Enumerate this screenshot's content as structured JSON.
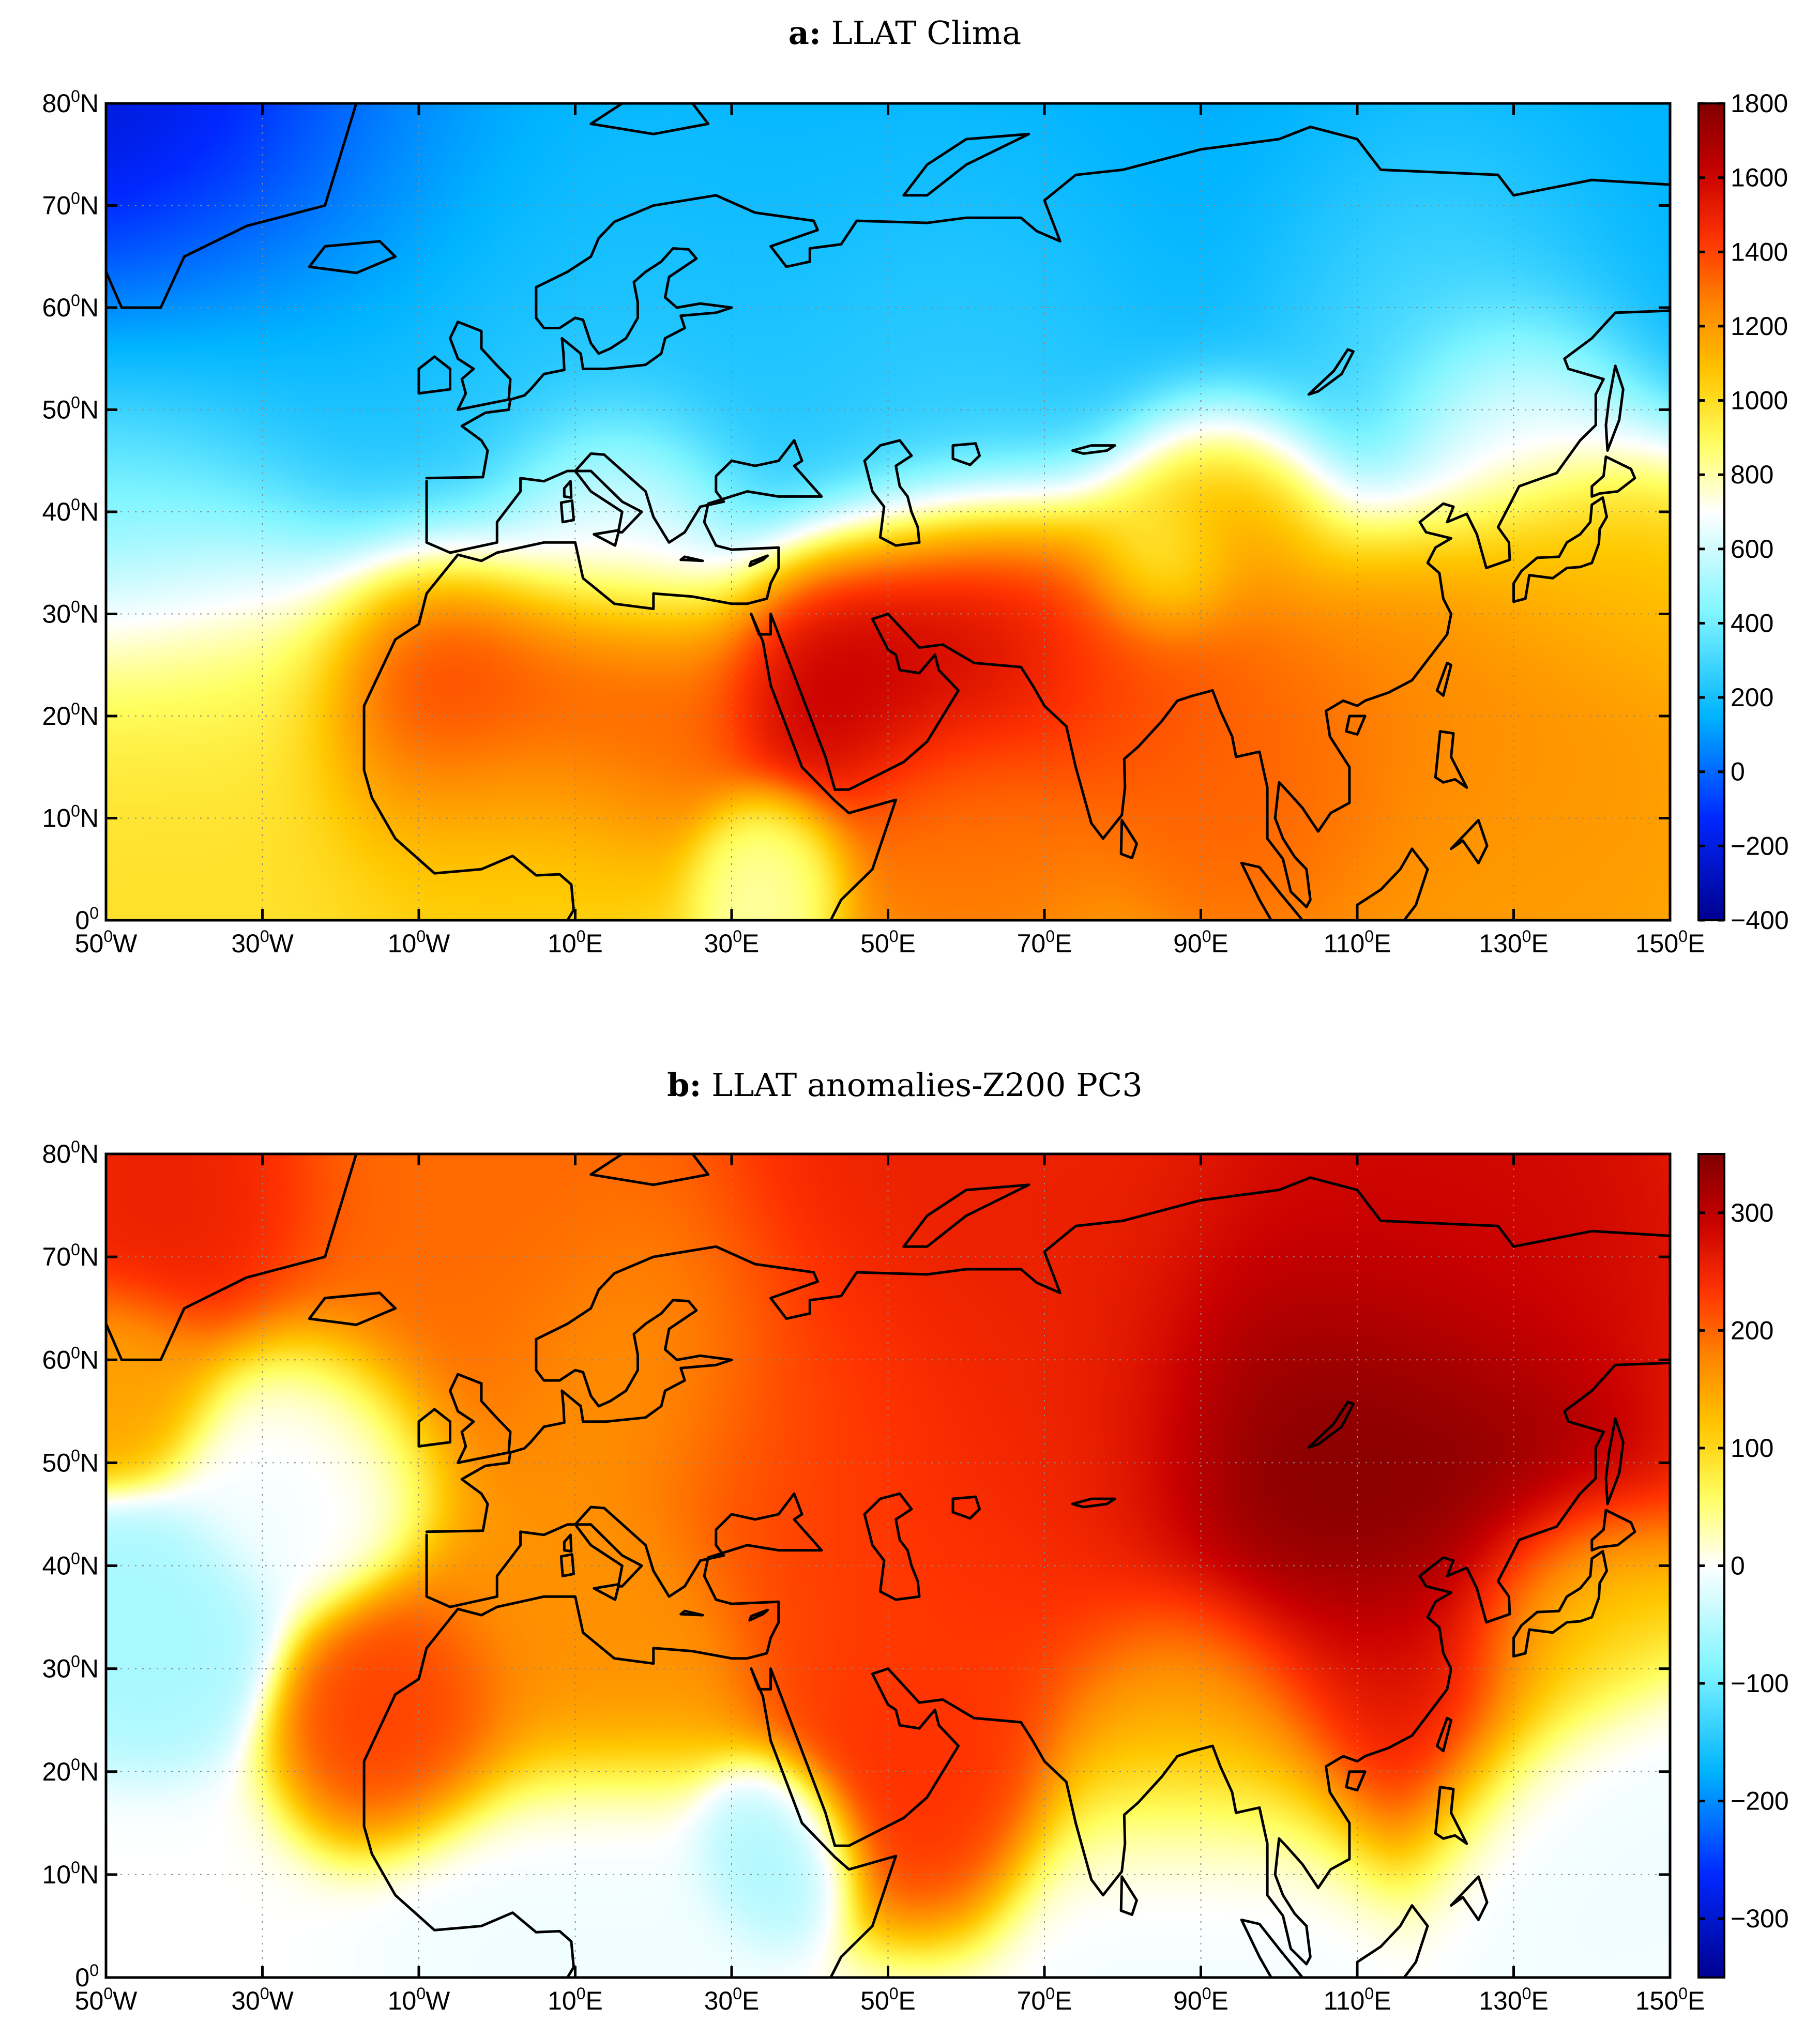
{
  "colors": {
    "colormap": [
      "#00008f",
      "#0028ff",
      "#00b4ff",
      "#7ff5ff",
      "#ffffff",
      "#ffff60",
      "#ffc800",
      "#ff8800",
      "#ff3300",
      "#c80000",
      "#800000"
    ]
  },
  "x_ticks": [
    {
      "num": "50",
      "sup": "0",
      "hem": "W"
    },
    {
      "num": "30",
      "sup": "0",
      "hem": "W"
    },
    {
      "num": "10",
      "sup": "0",
      "hem": "W"
    },
    {
      "num": "10",
      "sup": "0",
      "hem": "E"
    },
    {
      "num": "30",
      "sup": "0",
      "hem": "E"
    },
    {
      "num": "50",
      "sup": "0",
      "hem": "E"
    },
    {
      "num": "70",
      "sup": "0",
      "hem": "E"
    },
    {
      "num": "90",
      "sup": "0",
      "hem": "E"
    },
    {
      "num": "110",
      "sup": "0",
      "hem": "E"
    },
    {
      "num": "130",
      "sup": "0",
      "hem": "E"
    },
    {
      "num": "150",
      "sup": "0",
      "hem": "E"
    }
  ],
  "y_ticks": [
    {
      "num": "80",
      "sup": "0",
      "hem": "N"
    },
    {
      "num": "70",
      "sup": "0",
      "hem": "N"
    },
    {
      "num": "60",
      "sup": "0",
      "hem": "N"
    },
    {
      "num": "50",
      "sup": "0",
      "hem": "N"
    },
    {
      "num": "40",
      "sup": "0",
      "hem": "N"
    },
    {
      "num": "30",
      "sup": "0",
      "hem": "N"
    },
    {
      "num": "20",
      "sup": "0",
      "hem": "N"
    },
    {
      "num": "10",
      "sup": "0",
      "hem": "N"
    },
    {
      "num": "0",
      "sup": "0",
      "hem": ""
    }
  ],
  "chart_data": [
    {
      "type": "heatmap",
      "panel_label": "a:",
      "title": "LLAT Clima",
      "lon_range": [
        -50,
        150
      ],
      "lat_range": [
        0,
        80
      ],
      "grid": true,
      "colorbar": {
        "range": [
          -400,
          1800
        ],
        "ticks": [
          "1800",
          "1600",
          "1400",
          "1200",
          "1000",
          "800",
          "600",
          "400",
          "200",
          "0",
          "−200",
          "−400"
        ],
        "tick_values": [
          1800,
          1600,
          1400,
          1200,
          1000,
          800,
          600,
          400,
          200,
          0,
          -200,
          -400
        ]
      },
      "field": {
        "base": 500,
        "anchors": [
          {
            "lon": -42,
            "lat": 76,
            "value": -340,
            "radius": 14
          },
          {
            "lon": -20,
            "lat": 74,
            "value": 20,
            "radius": 18
          },
          {
            "lon": 20,
            "lat": 72,
            "value": 150,
            "radius": 20
          },
          {
            "lon": 60,
            "lat": 72,
            "value": 120,
            "radius": 20
          },
          {
            "lon": 100,
            "lat": 74,
            "value": 120,
            "radius": 20
          },
          {
            "lon": 140,
            "lat": 72,
            "value": 130,
            "radius": 18
          },
          {
            "lon": -35,
            "lat": 55,
            "value": 260,
            "radius": 16
          },
          {
            "lon": 10,
            "lat": 57,
            "value": 280,
            "radius": 18
          },
          {
            "lon": 60,
            "lat": 60,
            "value": 320,
            "radius": 16
          },
          {
            "lon": 120,
            "lat": 62,
            "value": 420,
            "radius": 14
          },
          {
            "lon": -45,
            "lat": 38,
            "value": 420,
            "radius": 10
          },
          {
            "lon": -40,
            "lat": 25,
            "value": 900,
            "radius": 12
          },
          {
            "lon": -40,
            "lat": 8,
            "value": 1000,
            "radius": 14
          },
          {
            "lon": -5,
            "lat": 22,
            "value": 1520,
            "radius": 10
          },
          {
            "lon": 15,
            "lat": 22,
            "value": 1380,
            "radius": 10
          },
          {
            "lon": 0,
            "lat": 8,
            "value": 1050,
            "radius": 12
          },
          {
            "lon": 45,
            "lat": 24,
            "value": 1680,
            "radius": 9
          },
          {
            "lon": 62,
            "lat": 28,
            "value": 1650,
            "radius": 10
          },
          {
            "lon": 80,
            "lat": 27,
            "value": 1400,
            "radius": 10
          },
          {
            "lon": 92,
            "lat": 40,
            "value": 1250,
            "radius": 8
          },
          {
            "lon": 85,
            "lat": 35,
            "value": 750,
            "radius": 5
          },
          {
            "lon": 35,
            "lat": 5,
            "value": 800,
            "radius": 5
          },
          {
            "lon": 60,
            "lat": 10,
            "value": 1300,
            "radius": 10
          },
          {
            "lon": 100,
            "lat": 15,
            "value": 1350,
            "radius": 12
          },
          {
            "lon": 125,
            "lat": 22,
            "value": 1250,
            "radius": 14
          },
          {
            "lon": 140,
            "lat": 35,
            "value": 1100,
            "radius": 10
          },
          {
            "lon": 130,
            "lat": 5,
            "value": 1200,
            "radius": 14
          },
          {
            "lon": 130,
            "lat": 50,
            "value": 800,
            "radius": 8
          },
          {
            "lon": 15,
            "lat": 40,
            "value": 780,
            "radius": 8
          }
        ]
      }
    },
    {
      "type": "heatmap",
      "panel_label": "b:",
      "title": "LLAT anomalies-Z200 PC3",
      "lon_range": [
        -50,
        150
      ],
      "lat_range": [
        0,
        80
      ],
      "grid": true,
      "colorbar": {
        "range": [
          -350,
          350
        ],
        "ticks": [
          "300",
          "200",
          "100",
          "0",
          "−100",
          "−200",
          "−300"
        ],
        "tick_values": [
          300,
          200,
          100,
          0,
          -100,
          -200,
          -300
        ]
      },
      "field": {
        "base": 0,
        "anchors": [
          {
            "lon": -40,
            "lat": 76,
            "value": 260,
            "radius": 10
          },
          {
            "lon": 0,
            "lat": 74,
            "value": 200,
            "radius": 16
          },
          {
            "lon": 60,
            "lat": 72,
            "value": 260,
            "radius": 18
          },
          {
            "lon": 120,
            "lat": 72,
            "value": 290,
            "radius": 18
          },
          {
            "lon": 105,
            "lat": 50,
            "value": 360,
            "radius": 14
          },
          {
            "lon": 120,
            "lat": 45,
            "value": 350,
            "radius": 12
          },
          {
            "lon": 70,
            "lat": 50,
            "value": 250,
            "radius": 14
          },
          {
            "lon": 40,
            "lat": 55,
            "value": 220,
            "radius": 12
          },
          {
            "lon": 20,
            "lat": 60,
            "value": 160,
            "radius": 10
          },
          {
            "lon": 55,
            "lat": 35,
            "value": 230,
            "radius": 12
          },
          {
            "lon": 55,
            "lat": 22,
            "value": 240,
            "radius": 8
          },
          {
            "lon": 115,
            "lat": 30,
            "value": 260,
            "radius": 10
          },
          {
            "lon": -10,
            "lat": 26,
            "value": 230,
            "radius": 7
          },
          {
            "lon": 10,
            "lat": 32,
            "value": 170,
            "radius": 10
          },
          {
            "lon": -48,
            "lat": 58,
            "value": 150,
            "radius": 6
          },
          {
            "lon": -25,
            "lat": 50,
            "value": -10,
            "radius": 8
          },
          {
            "lon": -45,
            "lat": 35,
            "value": -60,
            "radius": 7
          },
          {
            "lon": 35,
            "lat": 13,
            "value": -60,
            "radius": 5
          },
          {
            "lon": 10,
            "lat": 8,
            "value": -10,
            "radius": 10
          },
          {
            "lon": 90,
            "lat": 10,
            "value": -10,
            "radius": 10
          },
          {
            "lon": 140,
            "lat": 15,
            "value": -10,
            "radius": 10
          },
          {
            "lon": 135,
            "lat": 35,
            "value": 80,
            "radius": 8
          },
          {
            "lon": 90,
            "lat": 25,
            "value": 150,
            "radius": 10
          }
        ]
      }
    }
  ]
}
